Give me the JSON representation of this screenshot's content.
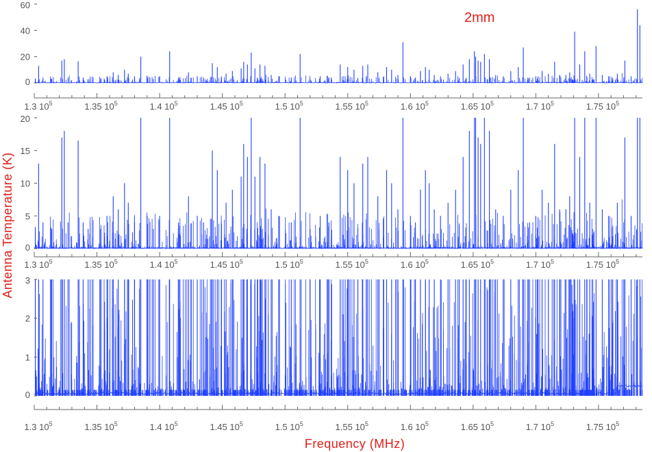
{
  "chart_data": {
    "type": "line",
    "band_label": "2mm",
    "xlabel": "Frequency (MHz)",
    "ylabel": "Antenna Temperature (K)",
    "xlim": [
      130000,
      178500
    ],
    "x_tick_labels": [
      {
        "value": 130000,
        "mantissa": "1.3",
        "exponent": "5"
      },
      {
        "value": 135000,
        "mantissa": "1.35",
        "exponent": "5"
      },
      {
        "value": 140000,
        "mantissa": "1.4",
        "exponent": "5"
      },
      {
        "value": 145000,
        "mantissa": "1.45",
        "exponent": "5"
      },
      {
        "value": 150000,
        "mantissa": "1.5",
        "exponent": "5"
      },
      {
        "value": 155000,
        "mantissa": "1.55",
        "exponent": "5"
      },
      {
        "value": 160000,
        "mantissa": "1.6",
        "exponent": "5"
      },
      {
        "value": 165000,
        "mantissa": "1.65",
        "exponent": "5"
      },
      {
        "value": 170000,
        "mantissa": "1.7",
        "exponent": "5"
      },
      {
        "value": 175000,
        "mantissa": "1.75",
        "exponent": "5"
      }
    ],
    "panels": [
      {
        "ylim": [
          0,
          60
        ],
        "yticks": [
          0,
          20,
          40,
          60
        ]
      },
      {
        "ylim": [
          0,
          20
        ],
        "yticks": [
          0,
          5,
          10,
          15,
          20
        ]
      },
      {
        "ylim": [
          0,
          3
        ],
        "yticks": [
          0,
          1,
          2,
          3
        ]
      }
    ],
    "line_color": "#1f3fff",
    "label_color": "#e0201b",
    "lines": [
      {
        "x": 130350,
        "y": 13
      },
      {
        "x": 130700,
        "y": 4
      },
      {
        "x": 131400,
        "y": 3
      },
      {
        "x": 132200,
        "y": 17
      },
      {
        "x": 132400,
        "y": 18
      },
      {
        "x": 132700,
        "y": 4
      },
      {
        "x": 133500,
        "y": 16.5
      },
      {
        "x": 133900,
        "y": 4
      },
      {
        "x": 134300,
        "y": 3
      },
      {
        "x": 135300,
        "y": 3
      },
      {
        "x": 135800,
        "y": 5
      },
      {
        "x": 136300,
        "y": 8
      },
      {
        "x": 136700,
        "y": 6
      },
      {
        "x": 137200,
        "y": 10
      },
      {
        "x": 137500,
        "y": 7
      },
      {
        "x": 138000,
        "y": 4
      },
      {
        "x": 138500,
        "y": 20
      },
      {
        "x": 139000,
        "y": 5
      },
      {
        "x": 139500,
        "y": 3
      },
      {
        "x": 140000,
        "y": 5
      },
      {
        "x": 140800,
        "y": 24
      },
      {
        "x": 141500,
        "y": 4
      },
      {
        "x": 142300,
        "y": 8
      },
      {
        "x": 143000,
        "y": 5
      },
      {
        "x": 143500,
        "y": 4
      },
      {
        "x": 144200,
        "y": 15
      },
      {
        "x": 144600,
        "y": 12
      },
      {
        "x": 145300,
        "y": 7
      },
      {
        "x": 145800,
        "y": 9
      },
      {
        "x": 146500,
        "y": 11
      },
      {
        "x": 146700,
        "y": 16
      },
      {
        "x": 147000,
        "y": 14
      },
      {
        "x": 147300,
        "y": 23
      },
      {
        "x": 147600,
        "y": 11
      },
      {
        "x": 148000,
        "y": 14
      },
      {
        "x": 148400,
        "y": 13
      },
      {
        "x": 148900,
        "y": 6
      },
      {
        "x": 149500,
        "y": 5
      },
      {
        "x": 150500,
        "y": 4
      },
      {
        "x": 151200,
        "y": 22
      },
      {
        "x": 152000,
        "y": 3
      },
      {
        "x": 152800,
        "y": 5
      },
      {
        "x": 153500,
        "y": 4
      },
      {
        "x": 154400,
        "y": 14
      },
      {
        "x": 155000,
        "y": 12
      },
      {
        "x": 155500,
        "y": 10
      },
      {
        "x": 156200,
        "y": 13
      },
      {
        "x": 156600,
        "y": 14
      },
      {
        "x": 157400,
        "y": 8
      },
      {
        "x": 158100,
        "y": 12
      },
      {
        "x": 158500,
        "y": 10
      },
      {
        "x": 159000,
        "y": 6
      },
      {
        "x": 159400,
        "y": 31
      },
      {
        "x": 160000,
        "y": 5
      },
      {
        "x": 160400,
        "y": 4
      },
      {
        "x": 160800,
        "y": 9
      },
      {
        "x": 161200,
        "y": 12
      },
      {
        "x": 161500,
        "y": 10
      },
      {
        "x": 161900,
        "y": 6
      },
      {
        "x": 162400,
        "y": 5
      },
      {
        "x": 163000,
        "y": 7
      },
      {
        "x": 163600,
        "y": 9
      },
      {
        "x": 164200,
        "y": 14
      },
      {
        "x": 164700,
        "y": 18
      },
      {
        "x": 165100,
        "y": 24
      },
      {
        "x": 165200,
        "y": 20
      },
      {
        "x": 165400,
        "y": 17
      },
      {
        "x": 165600,
        "y": 16
      },
      {
        "x": 165900,
        "y": 22
      },
      {
        "x": 166300,
        "y": 18
      },
      {
        "x": 166800,
        "y": 6
      },
      {
        "x": 167400,
        "y": 5
      },
      {
        "x": 168000,
        "y": 9
      },
      {
        "x": 168600,
        "y": 12
      },
      {
        "x": 169000,
        "y": 27
      },
      {
        "x": 169500,
        "y": 4
      },
      {
        "x": 170000,
        "y": 5
      },
      {
        "x": 170500,
        "y": 9
      },
      {
        "x": 171000,
        "y": 7
      },
      {
        "x": 171500,
        "y": 16
      },
      {
        "x": 171900,
        "y": 6
      },
      {
        "x": 172400,
        "y": 6
      },
      {
        "x": 172700,
        "y": 8
      },
      {
        "x": 173100,
        "y": 39
      },
      {
        "x": 173500,
        "y": 14
      },
      {
        "x": 173900,
        "y": 24
      },
      {
        "x": 174300,
        "y": 7
      },
      {
        "x": 174800,
        "y": 28
      },
      {
        "x": 175300,
        "y": 6
      },
      {
        "x": 175800,
        "y": 5
      },
      {
        "x": 176500,
        "y": 7
      },
      {
        "x": 177100,
        "y": 17
      },
      {
        "x": 177600,
        "y": 5
      },
      {
        "x": 178100,
        "y": 56
      },
      {
        "x": 178300,
        "y": 44
      }
    ]
  }
}
